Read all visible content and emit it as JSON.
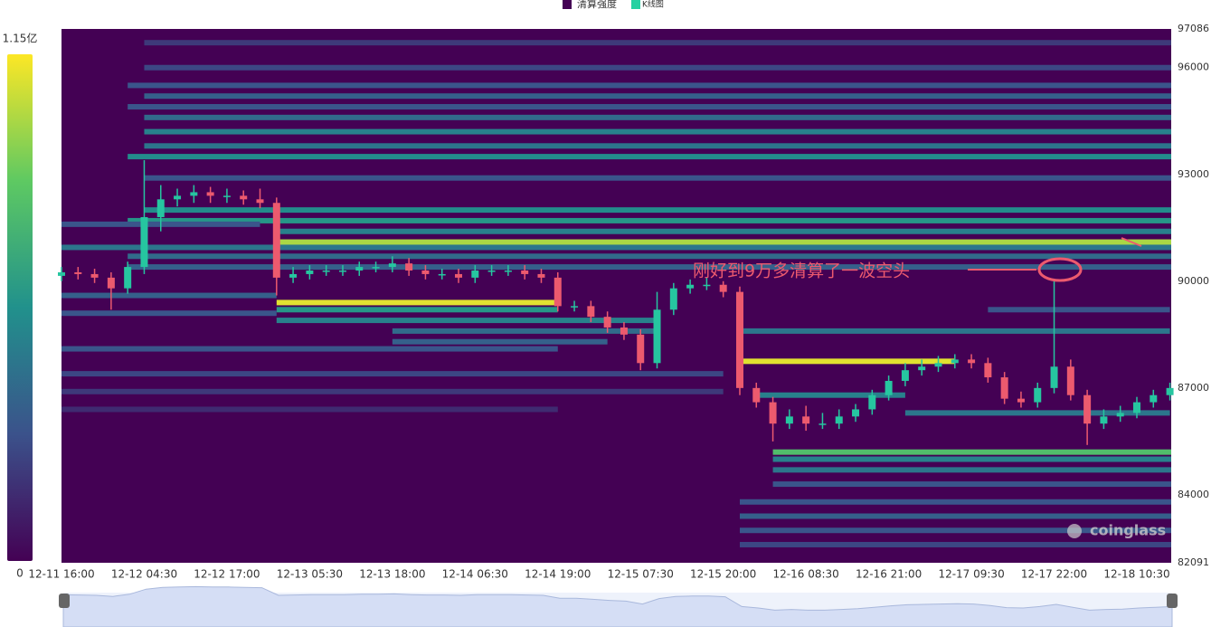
{
  "chart_data": {
    "type": "heatmap-candlestick",
    "legend": [
      "清算强度",
      "K线图"
    ],
    "legend_colors": [
      "#440154",
      "#26d1a2"
    ],
    "up_color": "#26c6a0",
    "down_color": "#ec5a6e",
    "annotation": "刚好到9万多清算了一波空头",
    "watermark": "coinglass",
    "visual_map": {
      "range": [
        0,
        1.15
      ],
      "ticks": [
        0,
        {
          "value": 1.15,
          "label": "1.15亿"
        }
      ]
    },
    "ylim": [
      82091,
      97086
    ],
    "yticks": [
      82091,
      84000,
      87000,
      90000,
      93000,
      96000,
      97086
    ],
    "categories": [
      "12-11 16:00",
      null,
      null,
      null,
      null,
      "12-12 04:30",
      null,
      null,
      null,
      null,
      "12-12 17:00",
      null,
      null,
      null,
      null,
      "12-13 05:30",
      null,
      null,
      null,
      null,
      "12-13 18:00",
      null,
      null,
      null,
      null,
      "12-14 06:30",
      null,
      null,
      null,
      null,
      "12-14 19:00",
      null,
      null,
      null,
      null,
      "12-15 07:30",
      null,
      null,
      null,
      null,
      "12-15 20:00",
      null,
      null,
      null,
      null,
      "12-16 08:30",
      null,
      null,
      null,
      null,
      "12-16 21:00",
      null,
      null,
      null,
      null,
      "12-17 09:30",
      null,
      null,
      null,
      null,
      "12-17 22:00",
      null,
      null,
      null,
      null,
      "12-18 10:30",
      null,
      null
    ],
    "open": [
      90150,
      90250,
      90200,
      90100,
      89800,
      90400,
      91800,
      92300,
      92400,
      92500,
      92400,
      92400,
      92300,
      92200,
      90100,
      90200,
      90300,
      90300,
      90300,
      90400,
      90400,
      90500,
      90300,
      90200,
      90200,
      90100,
      90300,
      90300,
      90300,
      90200,
      90100,
      89300,
      89300,
      89000,
      88700,
      88500,
      87700,
      89200,
      89800,
      89900,
      89900,
      89700,
      87000,
      86600,
      86000,
      86200,
      86000,
      86000,
      86200,
      86400,
      86800,
      87200,
      87500,
      87600,
      87700,
      87800,
      87700,
      87300,
      86700,
      86600,
      87000,
      87600,
      86800,
      86000,
      86200,
      86300,
      86600,
      86800
    ],
    "high": [
      90400,
      90400,
      90350,
      90250,
      90550,
      93400,
      92700,
      92600,
      92700,
      92650,
      92600,
      92550,
      92600,
      92350,
      90400,
      90450,
      90450,
      90450,
      90550,
      90550,
      90700,
      90650,
      90450,
      90350,
      90350,
      90450,
      90450,
      90450,
      90450,
      90350,
      90250,
      89450,
      89450,
      89150,
      88850,
      88650,
      89700,
      89950,
      90050,
      90100,
      90000,
      89850,
      87150,
      86750,
      86400,
      86500,
      86300,
      86400,
      86550,
      86950,
      87350,
      87700,
      87800,
      87900,
      87950,
      87950,
      87850,
      87450,
      86900,
      87150,
      90000,
      87800,
      86950,
      86400,
      86500,
      86750,
      86950,
      87150
    ],
    "low": [
      90000,
      90050,
      89950,
      89200,
      89650,
      90200,
      91400,
      92100,
      92200,
      92200,
      92200,
      92150,
      92050,
      89600,
      89950,
      90050,
      90150,
      90150,
      90150,
      90250,
      90250,
      90150,
      90050,
      90050,
      89950,
      89950,
      90150,
      90150,
      90050,
      89950,
      89150,
      89150,
      88850,
      88550,
      88350,
      87500,
      87550,
      89050,
      89650,
      89750,
      89550,
      86800,
      86450,
      85500,
      85850,
      85800,
      85850,
      85850,
      86050,
      86250,
      86650,
      87050,
      87350,
      87450,
      87550,
      87550,
      87150,
      86550,
      86450,
      86450,
      86850,
      86650,
      85400,
      85850,
      86050,
      86150,
      86450,
      86650
    ],
    "close": [
      90250,
      90200,
      90100,
      89800,
      90400,
      91800,
      92300,
      92400,
      92500,
      92400,
      92400,
      92300,
      92200,
      90100,
      90200,
      90300,
      90300,
      90300,
      90400,
      90400,
      90500,
      90300,
      90200,
      90200,
      90100,
      90300,
      90300,
      90300,
      90200,
      90100,
      89300,
      89300,
      89000,
      88700,
      88500,
      87700,
      89200,
      89800,
      89900,
      89900,
      89700,
      87000,
      86600,
      86000,
      86200,
      86000,
      86000,
      86200,
      86400,
      86800,
      87200,
      87500,
      87600,
      87700,
      87800,
      87700,
      87300,
      86700,
      86600,
      87000,
      87600,
      86800,
      86000,
      86200,
      86300,
      86600,
      86800,
      87000
    ],
    "bands": [
      {
        "price": 96700,
        "x0": 5,
        "value": 0.2
      },
      {
        "price": 96000,
        "x0": 5,
        "value": 0.25
      },
      {
        "price": 95500,
        "x0": 4,
        "value": 0.3
      },
      {
        "price": 95200,
        "x0": 5,
        "value": 0.35
      },
      {
        "price": 94900,
        "x0": 4,
        "value": 0.3
      },
      {
        "price": 94600,
        "x0": 5,
        "value": 0.4
      },
      {
        "price": 94200,
        "x0": 5,
        "value": 0.5
      },
      {
        "price": 93800,
        "x0": 5,
        "value": 0.45
      },
      {
        "price": 93500,
        "x0": 4,
        "value": 0.55
      },
      {
        "price": 92900,
        "x0": 5,
        "value": 0.3
      },
      {
        "price": 92000,
        "x0": 5,
        "value": 0.55
      },
      {
        "price": 91700,
        "x0": 4,
        "value": 0.6
      },
      {
        "price": 91600,
        "x0": 0,
        "x1": 12,
        "value": 0.3
      },
      {
        "price": 91400,
        "x0": 13,
        "value": 0.5
      },
      {
        "price": 91100,
        "x0": 13,
        "value": 1.0
      },
      {
        "price": 90950,
        "x0": 0,
        "value": 0.45
      },
      {
        "price": 90700,
        "x0": 4,
        "value": 0.4
      },
      {
        "price": 90400,
        "x0": 4,
        "value": 0.35
      },
      {
        "price": 89600,
        "x0": 0,
        "x1": 13,
        "value": 0.35
      },
      {
        "price": 89400,
        "x0": 13,
        "x1": 30,
        "value": 1.1
      },
      {
        "price": 89200,
        "x0": 13,
        "x1": 30,
        "value": 0.6
      },
      {
        "price": 89100,
        "x0": 0,
        "x1": 13,
        "value": 0.3
      },
      {
        "price": 88900,
        "x0": 13,
        "x1": 36,
        "value": 0.5
      },
      {
        "price": 88600,
        "x0": 20,
        "x1": 36,
        "value": 0.4
      },
      {
        "price": 88300,
        "x0": 20,
        "x1": 33,
        "value": 0.35
      },
      {
        "price": 88100,
        "x0": 0,
        "x1": 30,
        "value": 0.3
      },
      {
        "price": 89200,
        "x0": 56,
        "x1": 67,
        "value": 0.3
      },
      {
        "price": 88600,
        "x0": 41,
        "x1": 67,
        "value": 0.45
      },
      {
        "price": 87750,
        "x0": 41,
        "x1": 54,
        "value": 1.1
      },
      {
        "price": 87400,
        "x0": 0,
        "x1": 40,
        "value": 0.25
      },
      {
        "price": 86900,
        "x0": 0,
        "x1": 40,
        "value": 0.2
      },
      {
        "price": 86800,
        "x0": 42,
        "x1": 51,
        "value": 0.5
      },
      {
        "price": 86400,
        "x0": 0,
        "x1": 30,
        "value": 0.15
      },
      {
        "price": 86300,
        "x0": 51,
        "x1": 67,
        "value": 0.45
      },
      {
        "price": 85200,
        "x0": 43,
        "value": 0.8
      },
      {
        "price": 85000,
        "x0": 43,
        "value": 0.5
      },
      {
        "price": 84700,
        "x0": 43,
        "value": 0.45
      },
      {
        "price": 84300,
        "x0": 43,
        "value": 0.3
      },
      {
        "price": 83800,
        "x0": 41,
        "value": 0.3
      },
      {
        "price": 83400,
        "x0": 41,
        "value": 0.35
      },
      {
        "price": 83000,
        "x0": 41,
        "value": 0.3
      },
      {
        "price": 82600,
        "x0": 41,
        "value": 0.25
      }
    ]
  }
}
